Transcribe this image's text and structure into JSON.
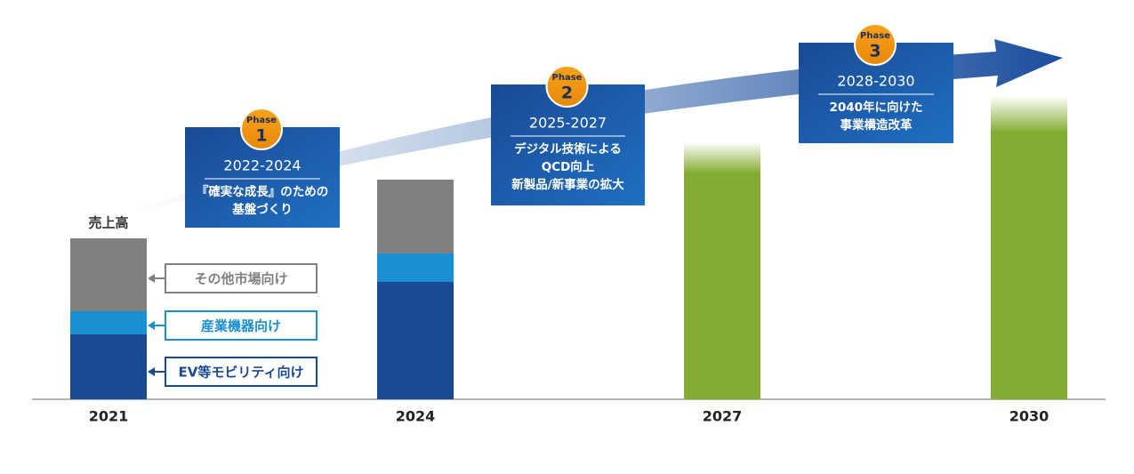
{
  "chart_data": {
    "type": "bar",
    "stacked": true,
    "ylabel": "売上高",
    "categories": [
      "2021",
      "2024",
      "2027",
      "2030"
    ],
    "series": [
      {
        "name": "EV等モビリティ向け",
        "color": "#1a4a94",
        "values": [
          18.25,
          33,
          null,
          null
        ]
      },
      {
        "name": "産業機器向け",
        "color": "#1b8fd3",
        "values": [
          6.5,
          8,
          null,
          null
        ]
      },
      {
        "name": "その他市場向け",
        "color": "#808080",
        "values": [
          20.5,
          20.75,
          null,
          null
        ]
      },
      {
        "color": "#84ac32",
        "values": [
          null,
          null,
          72.25,
          85.25
        ]
      }
    ],
    "ylim": [
      0,
      100
    ],
    "phases": [
      {
        "label": "Phase",
        "number": "1",
        "years": "2022-2024",
        "text": [
          "『確実な成長』のための",
          "基盤づくり"
        ]
      },
      {
        "label": "Phase",
        "number": "2",
        "years": "2025-2027",
        "text": [
          "デジタル技術による",
          "QCD向上",
          "新製品/新事業の拡大"
        ]
      },
      {
        "label": "Phase",
        "number": "3",
        "years": "2028-2030",
        "text": [
          "2040年に向けた",
          "事業構造改革"
        ]
      }
    ]
  }
}
